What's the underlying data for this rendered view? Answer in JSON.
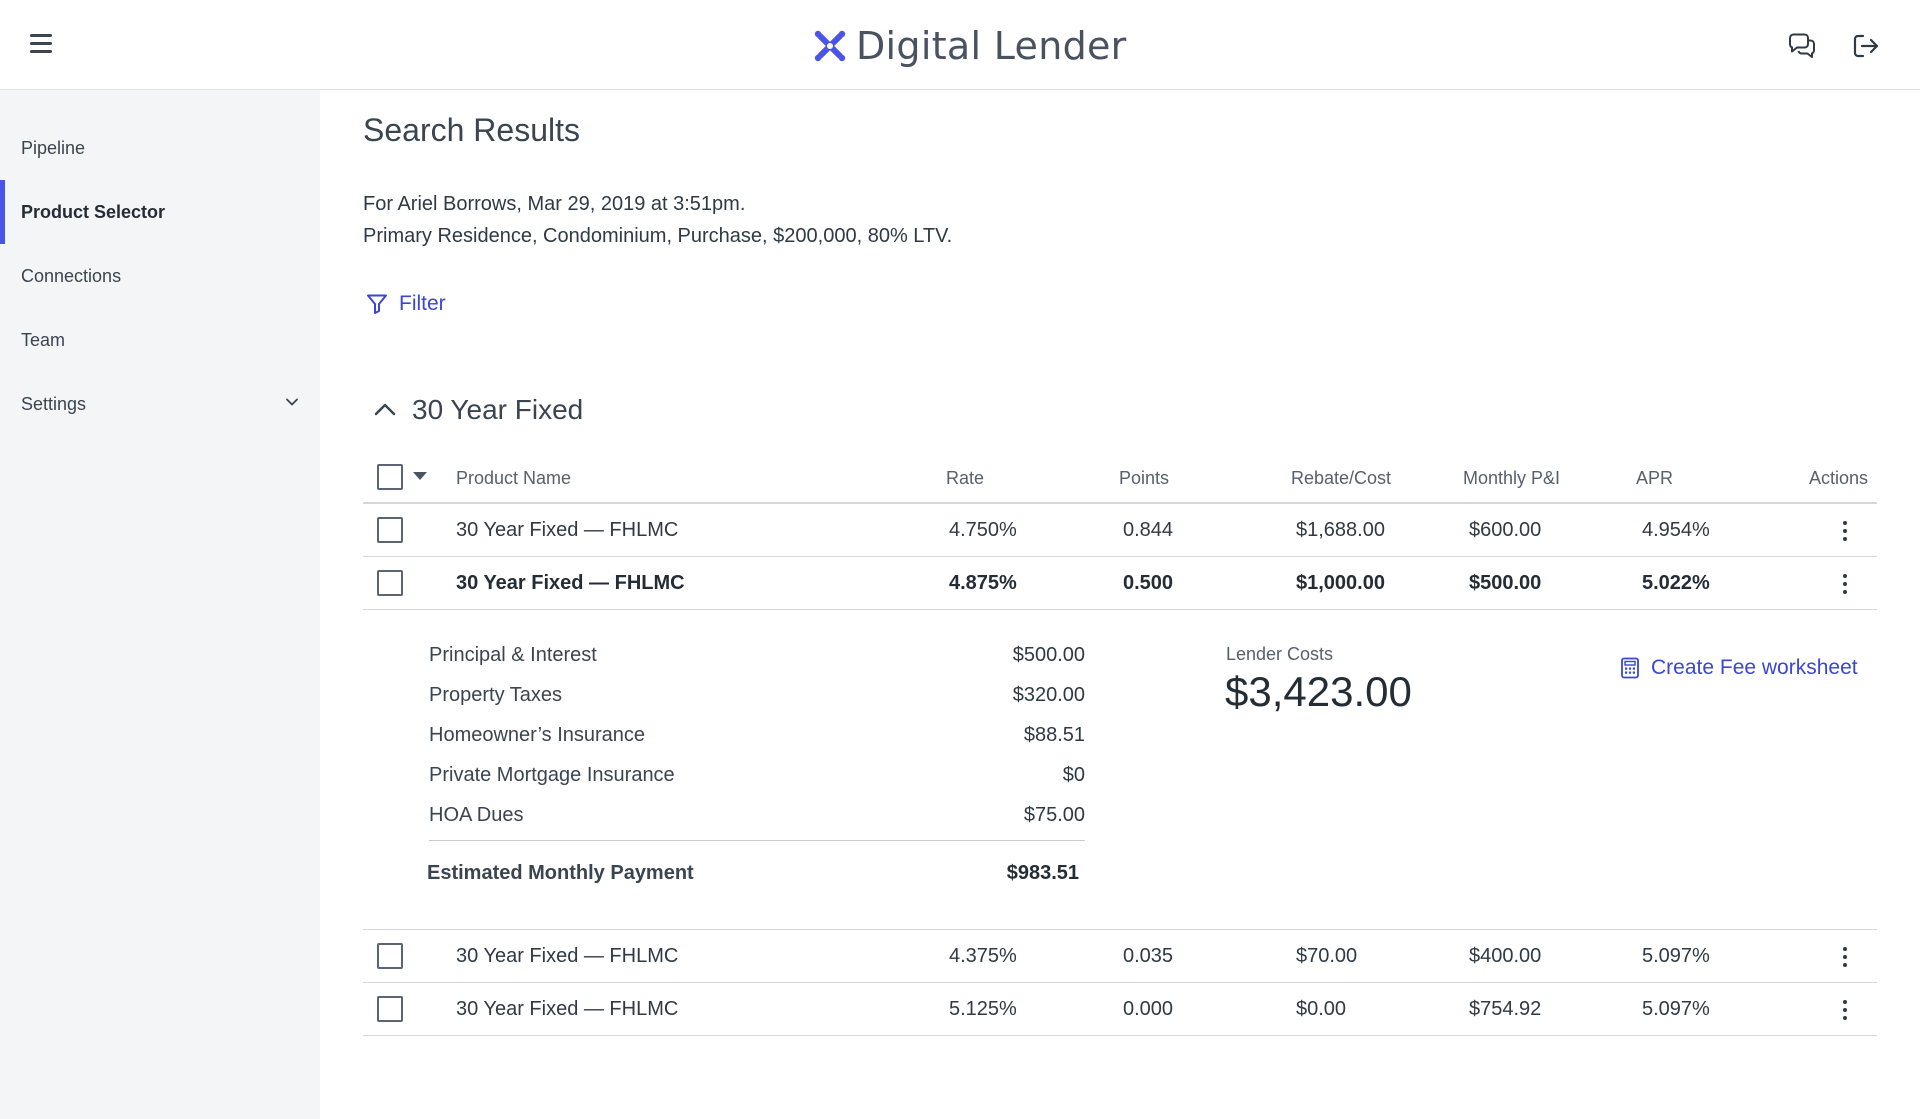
{
  "header": {
    "brand_name": "Digital Lender",
    "brand_color": "#4a55e8",
    "menu_icon": "hamburger-menu-icon",
    "chat_icon": "chat-bubbles-icon",
    "logout_icon": "logout-icon"
  },
  "sidebar": {
    "items": [
      {
        "label": "Pipeline",
        "active": false
      },
      {
        "label": "Product Selector",
        "active": true
      },
      {
        "label": "Connections",
        "active": false
      },
      {
        "label": "Team",
        "active": false
      },
      {
        "label": "Settings",
        "active": false,
        "has_chevron": true
      }
    ]
  },
  "main": {
    "title": "Search Results",
    "summary_line1": "For Ariel Borrows, Mar 29, 2019 at 3:51pm.",
    "summary_line2": "Primary Residence, Condominium, Purchase, $200,000, 80% LTV.",
    "filter_label": "Filter",
    "group_title": "30 Year Fixed"
  },
  "table": {
    "headers": {
      "product_name": "Product Name",
      "rate": "Rate",
      "points": "Points",
      "rebate": "Rebate/Cost",
      "monthly": "Monthly P&I",
      "apr": "APR",
      "actions": "Actions"
    },
    "rows": [
      {
        "name": "30 Year Fixed — FHLMC",
        "rate": "4.750%",
        "points": "0.844",
        "rebate": "$1,688.00",
        "monthly": "$600.00",
        "apr": "4.954%"
      },
      {
        "name": "30 Year Fixed — FHLMC",
        "rate": "4.875%",
        "points": "0.500",
        "rebate": "$1,000.00",
        "monthly": "$500.00",
        "apr": "5.022%",
        "expanded": true
      },
      {
        "name": "30 Year Fixed — FHLMC",
        "rate": "4.375%",
        "points": "0.035",
        "rebate": "$70.00",
        "monthly": "$400.00",
        "apr": "5.097%"
      },
      {
        "name": "30 Year Fixed — FHLMC",
        "rate": "5.125%",
        "points": "0.000",
        "rebate": "$0.00",
        "monthly": "$754.92",
        "apr": "5.097%"
      }
    ]
  },
  "detail": {
    "lines": [
      {
        "label": "Principal & Interest",
        "value": "$500.00"
      },
      {
        "label": "Property Taxes",
        "value": "$320.00"
      },
      {
        "label": "Homeowner’s Insurance",
        "value": "$88.51"
      },
      {
        "label": "Private Mortgage Insurance",
        "value": "$0"
      },
      {
        "label": "HOA Dues",
        "value": "$75.00"
      }
    ],
    "total_label": "Estimated Monthly Payment",
    "total_value": "$983.51",
    "lender_costs_label": "Lender Costs",
    "lender_costs_value": "$3,423.00",
    "fee_worksheet_label": "Create Fee worksheet"
  }
}
